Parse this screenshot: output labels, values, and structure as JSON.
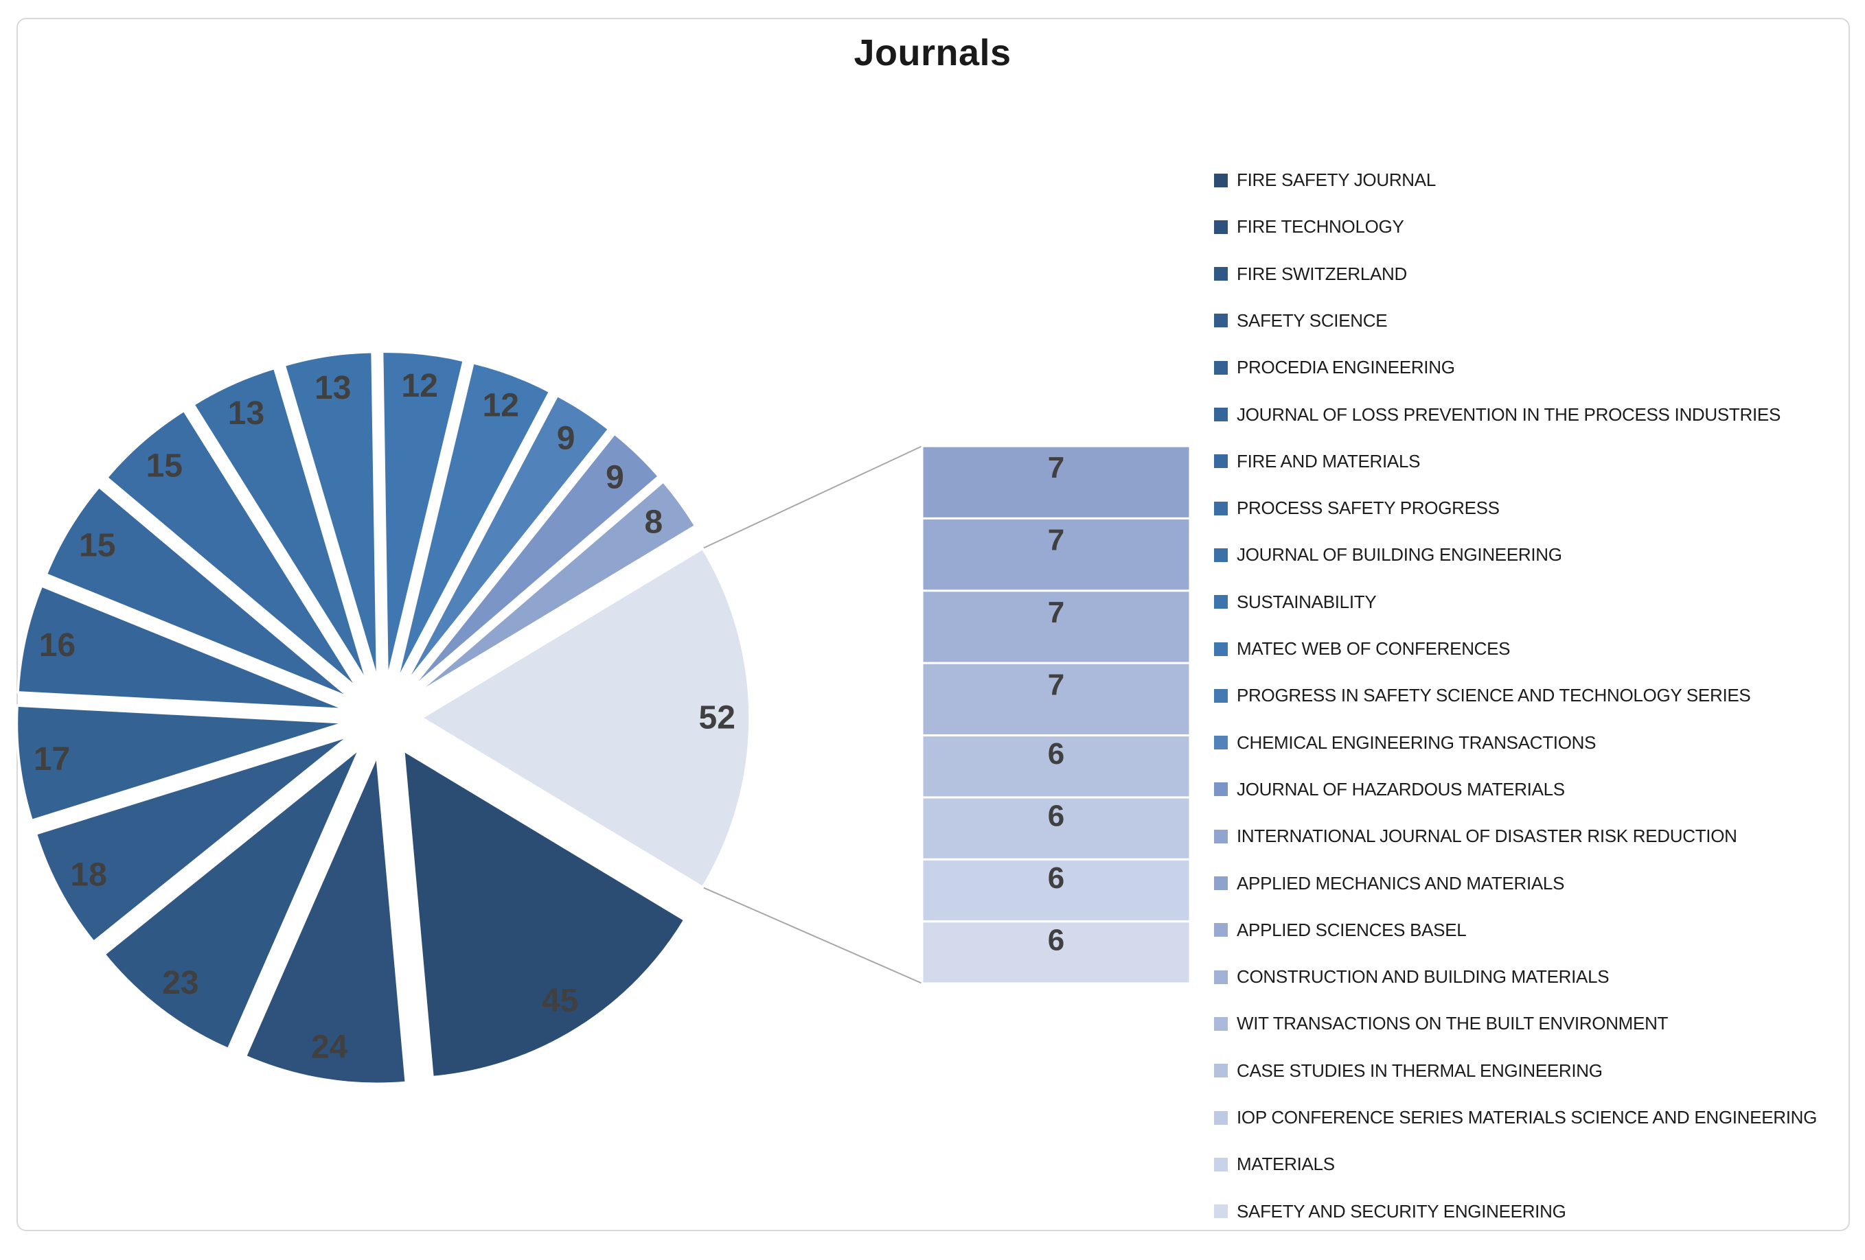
{
  "page": {
    "background": "#ffffff",
    "frame_border_color": "#d9d9d9"
  },
  "chart_data": {
    "type": "bar-of-pie",
    "title": "Journals",
    "legend_position": "right",
    "grid": false,
    "total": 301,
    "other_value": 52,
    "other_color": "#dce2ee",
    "bar_count": 8,
    "value_label_color": "#404040",
    "leader_line_color": "#a8a8a8",
    "legend_text_color": "#1c1c1c",
    "title_color": "#1a1a1a",
    "series": [
      {
        "name": "FIRE SAFETY JOURNAL",
        "value": 45,
        "color": "#2b4d74"
      },
      {
        "name": "FIRE TECHNOLOGY",
        "value": 24,
        "color": "#2e527c"
      },
      {
        "name": "FIRE SWITZERLAND",
        "value": 23,
        "color": "#305884"
      },
      {
        "name": "SAFETY SCIENCE",
        "value": 18,
        "color": "#325d8c"
      },
      {
        "name": "PROCEDIA ENGINEERING",
        "value": 17,
        "color": "#346293"
      },
      {
        "name": "JOURNAL OF LOSS PREVENTION IN THE PROCESS INDUSTRIES",
        "value": 16,
        "color": "#366699"
      },
      {
        "name": "FIRE AND MATERIALS",
        "value": 15,
        "color": "#386a9f"
      },
      {
        "name": "PROCESS SAFETY PROGRESS",
        "value": 15,
        "color": "#3a6ea4"
      },
      {
        "name": "JOURNAL OF BUILDING ENGINEERING",
        "value": 13,
        "color": "#3c71a8"
      },
      {
        "name": "SUSTAINABILITY",
        "value": 13,
        "color": "#3e74ac"
      },
      {
        "name": "MATEC WEB OF CONFERENCES",
        "value": 12,
        "color": "#4077b0"
      },
      {
        "name": "PROGRESS IN SAFETY SCIENCE AND TECHNOLOGY SERIES",
        "value": 12,
        "color": "#437ab3"
      },
      {
        "name": "CHEMICAL ENGINEERING TRANSACTIONS",
        "value": 9,
        "color": "#5282ba"
      },
      {
        "name": "JOURNAL OF HAZARDOUS MATERIALS",
        "value": 9,
        "color": "#7b95c6"
      },
      {
        "name": "INTERNATIONAL JOURNAL OF DISASTER RISK REDUCTION",
        "value": 8,
        "color": "#90a5ce"
      },
      {
        "name": "APPLIED MECHANICS AND MATERIALS",
        "value": 7,
        "color": "#8fa2cb"
      },
      {
        "name": "APPLIED SCIENCES BASEL",
        "value": 7,
        "color": "#98aad1"
      },
      {
        "name": "CONSTRUCTION AND BUILDING MATERIALS",
        "value": 7,
        "color": "#a2b2d6"
      },
      {
        "name": "WIT TRANSACTIONS ON THE BUILT ENVIRONMENT",
        "value": 7,
        "color": "#abbada"
      },
      {
        "name": "CASE STUDIES IN THERMAL ENGINEERING",
        "value": 6,
        "color": "#b4c2df"
      },
      {
        "name": "IOP CONFERENCE SERIES MATERIALS SCIENCE AND ENGINEERING",
        "value": 6,
        "color": "#becae3"
      },
      {
        "name": "MATERIALS",
        "value": 6,
        "color": "#c8d2e8"
      },
      {
        "name": "SAFETY AND SECURITY ENGINEERING",
        "value": 6,
        "color": "#d2daec"
      }
    ]
  }
}
